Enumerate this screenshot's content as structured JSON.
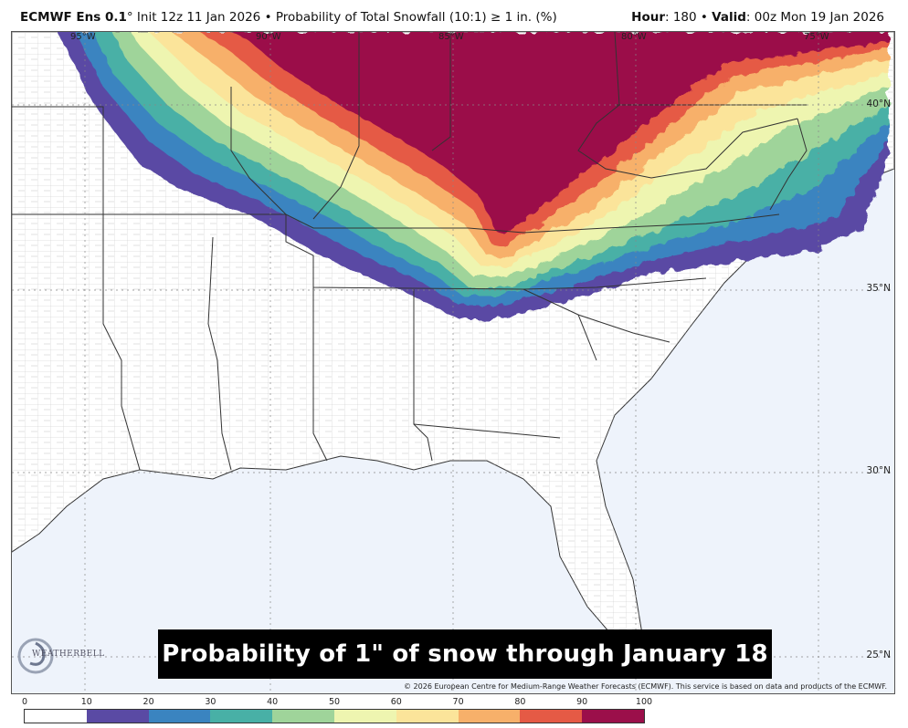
{
  "header": {
    "model": "ECMWF Ens 0.1",
    "degree": "°",
    "init": "Init 12z 11 Jan 2026",
    "bullet": "•",
    "product": "Probability of Total Snowfall (10:1) ≥ 1 in. (%)",
    "hour_label": "Hour",
    "hour_value": ": 180",
    "valid_label": "Valid",
    "valid_value": ": 00z Mon 19 Jan 2026"
  },
  "map": {
    "lat_labels": [
      "40°N",
      "35°N",
      "30°N",
      "25°N"
    ],
    "lon_labels": [
      "95°W",
      "90°W",
      "85°W",
      "80°W",
      "75°W"
    ],
    "caption": "Probability of 1\" of snow through January 18",
    "copyright": "© 2026 European Centre for Medium-Range Weather Forecasts (ECMWF). This service is based on data and products of the ECMWF.",
    "logo_text": "WEATHERBELL"
  },
  "colorbar": {
    "ticks": [
      "0",
      "10",
      "20",
      "30",
      "40",
      "50",
      "60",
      "70",
      "80",
      "90",
      "100"
    ],
    "colors": [
      "#ffffff",
      "#5a4aa4",
      "#3a84c0",
      "#48b0a6",
      "#9fd49a",
      "#eef5b0",
      "#fbe49a",
      "#f7b06a",
      "#e55a45",
      "#9b0f4a"
    ]
  },
  "palette": {
    "land": "#ffffff",
    "water": "#eef3fb",
    "borders": "#333333",
    "counties": "#b8b8b8"
  }
}
